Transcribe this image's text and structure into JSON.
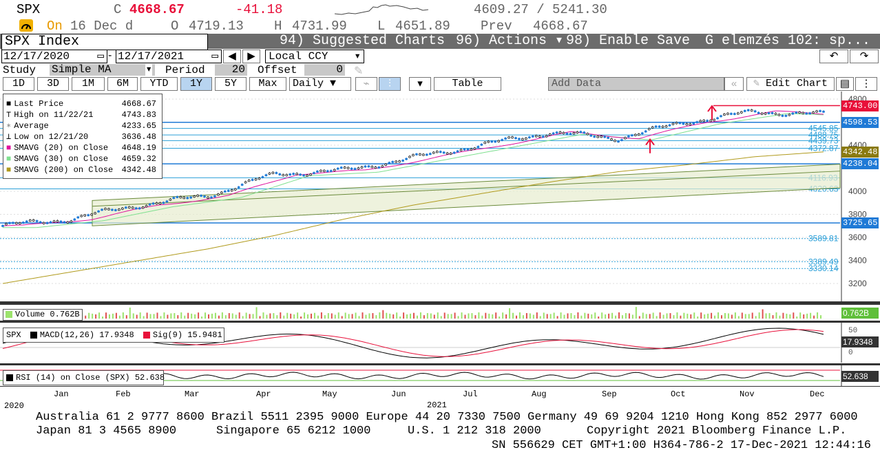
{
  "quote": {
    "ticker": "SPX",
    "c_label": "C",
    "last": "4668.67",
    "change": "-41.18",
    "range": "4609.27 / 5241.30",
    "on_label": "On",
    "date": "16 Dec d",
    "o_label": "O",
    "open": "4719.13",
    "h_label": "H",
    "high": "4731.99",
    "l_label": "L",
    "low": "4651.89",
    "prev_label": "Prev",
    "prev": "4668.67"
  },
  "tabs": {
    "security": "SPX Index",
    "suggested": "94) Suggested Charts",
    "actions": "96) Actions ▾",
    "enable_save": "98) Enable Save",
    "title": "G elemzés 102: sp..."
  },
  "range_row": {
    "start": "12/17/2020",
    "end": "12/17/2021",
    "currency": "Local CCY"
  },
  "study_row": {
    "study_label": "Study",
    "study_value": "Simple MA",
    "period_label": "Period",
    "period_value": "20",
    "offset_label": "Offset",
    "offset_value": "0"
  },
  "periods": [
    "1D",
    "3D",
    "1M",
    "6M",
    "YTD",
    "1Y",
    "5Y",
    "Max"
  ],
  "selected_period": "1Y",
  "frequency": "Daily ▼",
  "table_label": "Table",
  "add_data": "Add Data",
  "edit_chart": "Edit Chart",
  "legend": [
    {
      "label": "Last Price",
      "value": "4668.67",
      "color": "#000000"
    },
    {
      "label": "High on 11/22/21",
      "value": "4743.83",
      "color": "#000000"
    },
    {
      "label": "Average",
      "value": "4233.65",
      "color": "#777777"
    },
    {
      "label": "Low on 12/21/20",
      "value": "3636.48",
      "color": "#000000"
    },
    {
      "label": "SMAVG (20)  on Close",
      "value": "4648.19",
      "color": "#e0119d"
    },
    {
      "label": "SMAVG (30)  on Close",
      "value": "4659.32",
      "color": "#7fe08f"
    },
    {
      "label": "SMAVG (200)  on Close",
      "value": "4342.48",
      "color": "#b09a1c"
    }
  ],
  "price_axis": [
    "4800",
    "4400",
    "4000",
    "3800",
    "3600",
    "3400",
    "3200"
  ],
  "price_tags": [
    {
      "value": "4743.00",
      "color": "#e8103a"
    },
    {
      "value": "4598.53",
      "color": "#1f7ad6"
    },
    {
      "value": "4342.48",
      "color": "#8a7a10"
    },
    {
      "value": "4238.04",
      "color": "#1f7ad6"
    },
    {
      "value": "3725.65",
      "color": "#1f7ad6"
    }
  ],
  "levels": [
    "4545.85",
    "4488.75",
    "4439.73",
    "4372.87",
    "4116.93",
    "4020.63",
    "3589.81",
    "3389.49",
    "3330.14"
  ],
  "volume": {
    "label": "Volume",
    "value": "0.762B",
    "tag": "0.762B"
  },
  "macd": {
    "ticker": "SPX",
    "label": "MACD(12,26)",
    "value": "17.9348",
    "sig_label": "Sig(9)",
    "sig_value": "15.9481",
    "axis": [
      "50",
      "0"
    ],
    "tag": "17.9348"
  },
  "rsi": {
    "label": "RSI (14)  on Close (SPX)",
    "value": "52.638",
    "tag": "52.638"
  },
  "months": [
    "Jan",
    "Feb",
    "Mar",
    "Apr",
    "May",
    "Jun",
    "Jul",
    "Aug",
    "Sep",
    "Oct",
    "Nov",
    "Dec"
  ],
  "year_start": "2020",
  "year_mid": "2021",
  "footer": {
    "line1": "Australia 61 2 9777 8600 Brazil 5511 2395 9000 Europe 44 20 7330 7500 Germany 49 69 9204 1210 Hong Kong 852 2977 6000",
    "line2a": "Japan 81 3 4565 8900",
    "line2b": "Singapore 65 6212 1000",
    "line2c": "U.S. 1 212 318 2000",
    "line2d": "Copyright 2021 Bloomberg Finance L.P.",
    "line3": "SN 556629 CET  GMT+1:00 H364-786-2 17-Dec-2021 12:44:16"
  },
  "chart_data": {
    "type": "line",
    "title": "SPX Index",
    "x": [
      "2020-12",
      "2021-01",
      "2021-02",
      "2021-03",
      "2021-04",
      "2021-05",
      "2021-06",
      "2021-07",
      "2021-08",
      "2021-09",
      "2021-10",
      "2021-11",
      "2021-12"
    ],
    "series": [
      {
        "name": "Last Price",
        "values": [
          3700,
          3760,
          3880,
          3960,
          4150,
          4180,
          4290,
          4400,
          4510,
          4460,
          4600,
          4690,
          4668
        ]
      },
      {
        "name": "SMAVG (200)  on Close",
        "values": [
          3200,
          3300,
          3400,
          3500,
          3620,
          3760,
          3880,
          3980,
          4080,
          4170,
          4230,
          4300,
          4342
        ]
      }
    ],
    "ylim": [
      3100,
      4850
    ]
  }
}
